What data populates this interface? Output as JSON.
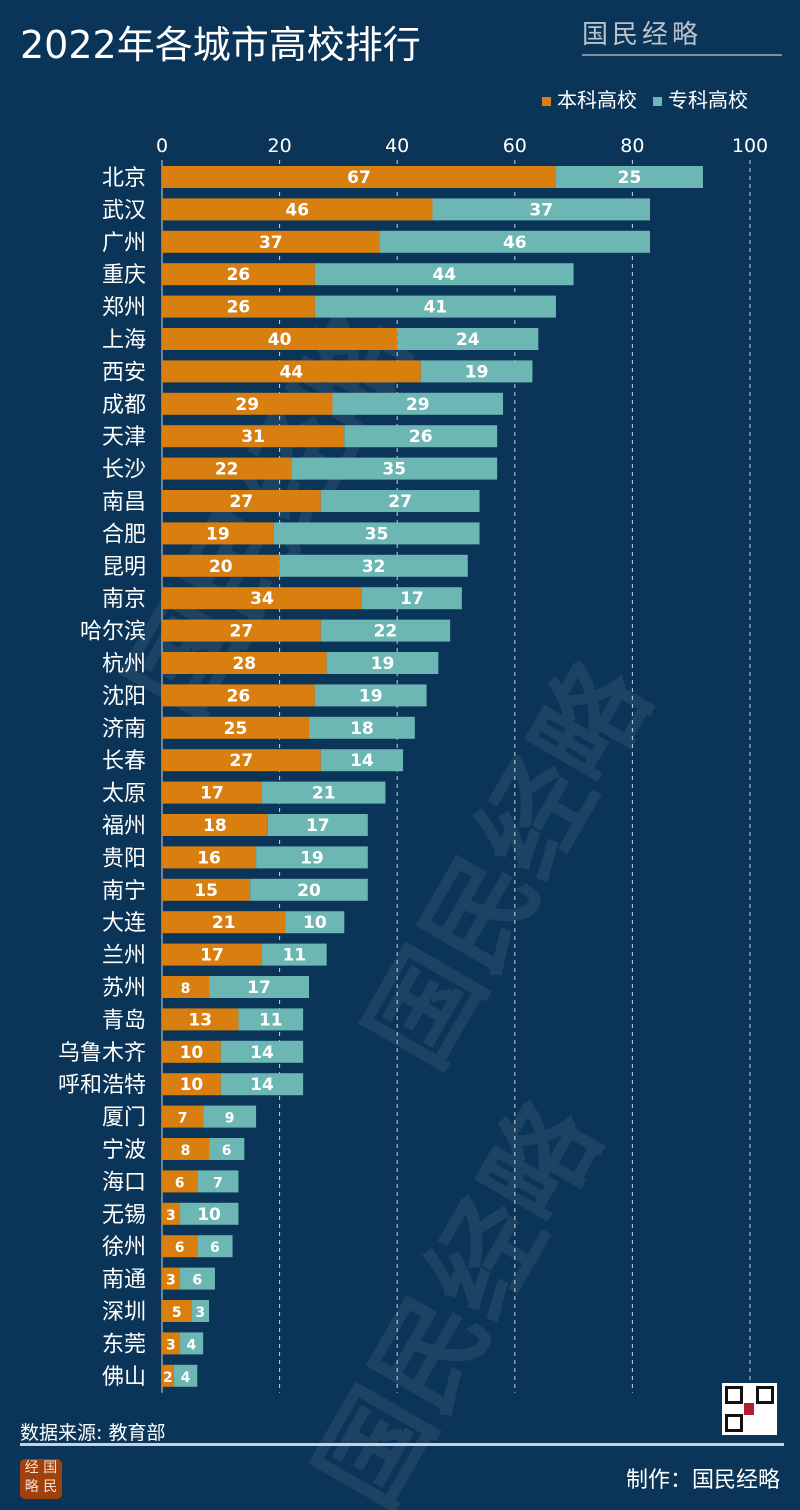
{
  "title": "2022年各城市高校排行",
  "brand": "国民经略",
  "source": "数据来源: 教育部",
  "credit": "制作：国民经略",
  "seal_text": "经国略民",
  "colors": {
    "background": "#0b3558",
    "undergrad": "#d97f10",
    "vocational": "#6cb6b4"
  },
  "chart_data": {
    "type": "bar",
    "orientation": "horizontal",
    "stacked": true,
    "title": "2022年各城市高校排行",
    "xlim": [
      0,
      100
    ],
    "xticks": [
      0,
      20,
      40,
      60,
      80,
      100
    ],
    "grid": true,
    "legend_position": "top-right",
    "categories": [
      "北京",
      "武汉",
      "广州",
      "重庆",
      "郑州",
      "上海",
      "西安",
      "成都",
      "天津",
      "长沙",
      "南昌",
      "合肥",
      "昆明",
      "南京",
      "哈尔滨",
      "杭州",
      "沈阳",
      "济南",
      "长春",
      "太原",
      "福州",
      "贵阳",
      "南宁",
      "大连",
      "兰州",
      "苏州",
      "青岛",
      "乌鲁木齐",
      "呼和浩特",
      "厦门",
      "宁波",
      "海口",
      "无锡",
      "徐州",
      "南通",
      "深圳",
      "东莞",
      "佛山"
    ],
    "series": [
      {
        "name": "本科高校",
        "color": "#d97f10",
        "values": [
          67,
          46,
          37,
          26,
          26,
          40,
          44,
          29,
          31,
          22,
          27,
          19,
          20,
          34,
          27,
          28,
          26,
          25,
          27,
          17,
          18,
          16,
          15,
          21,
          17,
          8,
          13,
          10,
          10,
          7,
          8,
          6,
          3,
          6,
          3,
          5,
          3,
          2
        ]
      },
      {
        "name": "专科高校",
        "color": "#6cb6b4",
        "values": [
          25,
          37,
          46,
          44,
          41,
          24,
          19,
          29,
          26,
          35,
          27,
          35,
          32,
          17,
          22,
          19,
          19,
          18,
          14,
          21,
          17,
          19,
          20,
          10,
          11,
          17,
          11,
          14,
          14,
          9,
          6,
          7,
          10,
          6,
          6,
          3,
          4,
          4
        ]
      }
    ]
  }
}
